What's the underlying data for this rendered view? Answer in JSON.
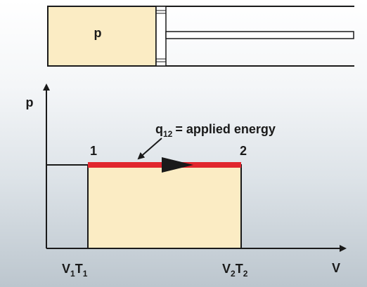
{
  "piston": {
    "gas_label": "p",
    "gas_fill": "#fbecc4",
    "stroke": "#1a1a1a"
  },
  "axes": {
    "y_label": "p",
    "x_label": "V"
  },
  "states": {
    "state_1": "1",
    "state_2": "2",
    "v1_main": "V",
    "v1_sub": "1",
    "t1_main": "T",
    "t1_sub": "1",
    "v2_main": "V",
    "v2_sub": "2",
    "t2_main": "T",
    "t2_sub": "2"
  },
  "annotation": {
    "heat_main": "q",
    "heat_sub": "12",
    "heat_text": "= applied energy"
  },
  "colors": {
    "process_line": "#e1262e",
    "area_fill": "#fbecc4",
    "ink": "#1a1a1a"
  }
}
